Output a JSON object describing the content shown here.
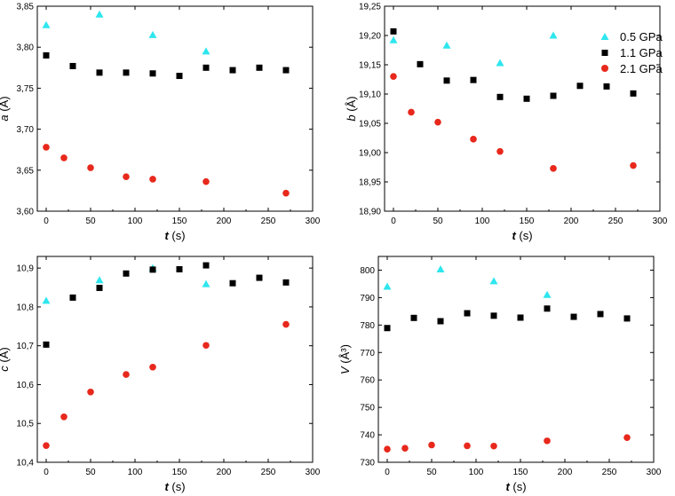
{
  "legend": [
    {
      "key": "s05",
      "label": "0.5 GPa"
    },
    {
      "key": "s11",
      "label": "1.1 GPa"
    },
    {
      "key": "s21",
      "label": "2.1 GPa"
    }
  ],
  "colors": {
    "s05": "#2ee6ee",
    "s11": "#000000",
    "s21": "#e8281c"
  },
  "chart_data": [
    {
      "type": "scatter",
      "xlabel_var": "t",
      "xlabel_unit": " (s)",
      "ylabel_var": "a",
      "ylabel_unit": " (Å)",
      "xlim": [
        -10,
        300
      ],
      "ylim": [
        3.6,
        3.85
      ],
      "xticks": [
        0,
        50,
        100,
        150,
        200,
        250,
        300
      ],
      "yticks": [
        3.6,
        3.65,
        3.7,
        3.75,
        3.8,
        3.85
      ],
      "ytick_labels": [
        "3,60",
        "3,65",
        "3,70",
        "3,75",
        "3,80",
        "3,85"
      ],
      "series": [
        {
          "key": "s05",
          "name": "0.5 GPa",
          "marker": "triangle",
          "x": [
            0,
            60,
            120,
            180
          ],
          "y": [
            3.827,
            3.84,
            3.815,
            3.795
          ]
        },
        {
          "key": "s11",
          "name": "1.1 GPa",
          "marker": "square",
          "x": [
            0,
            30,
            60,
            90,
            120,
            150,
            180,
            210,
            240,
            270
          ],
          "y": [
            3.79,
            3.777,
            3.769,
            3.769,
            3.768,
            3.765,
            3.775,
            3.772,
            3.775,
            3.772
          ]
        },
        {
          "key": "s21",
          "name": "2.1 GPa",
          "marker": "circle",
          "x": [
            0,
            20,
            50,
            90,
            120,
            180,
            270
          ],
          "y": [
            3.678,
            3.665,
            3.653,
            3.642,
            3.639,
            3.636,
            3.622
          ]
        }
      ]
    },
    {
      "type": "scatter",
      "xlabel_var": "t",
      "xlabel_unit": " (s)",
      "ylabel_var": "b",
      "ylabel_unit": " (Å)",
      "xlim": [
        -10,
        300
      ],
      "ylim": [
        18.9,
        19.25
      ],
      "xticks": [
        0,
        50,
        100,
        150,
        200,
        250,
        300
      ],
      "yticks": [
        18.9,
        18.95,
        19.0,
        19.05,
        19.1,
        19.15,
        19.2,
        19.25
      ],
      "ytick_labels": [
        "18,90",
        "18,95",
        "19,00",
        "19,05",
        "19,10",
        "19,15",
        "19,20",
        "19,25"
      ],
      "series": [
        {
          "key": "s05",
          "name": "0.5 GPa",
          "marker": "triangle",
          "x": [
            0,
            60,
            120,
            180
          ],
          "y": [
            19.192,
            19.183,
            19.153,
            19.2
          ]
        },
        {
          "key": "s11",
          "name": "1.1 GPa",
          "marker": "square",
          "x": [
            0,
            30,
            60,
            90,
            120,
            150,
            180,
            210,
            240,
            270
          ],
          "y": [
            19.207,
            19.151,
            19.123,
            19.124,
            19.095,
            19.092,
            19.097,
            19.114,
            19.113,
            19.101
          ]
        },
        {
          "key": "s21",
          "name": "2.1 GPa",
          "marker": "circle",
          "x": [
            0,
            20,
            50,
            90,
            120,
            180,
            270
          ],
          "y": [
            19.13,
            19.069,
            19.052,
            19.023,
            19.002,
            18.973,
            18.978
          ]
        }
      ]
    },
    {
      "type": "scatter",
      "xlabel_var": "t",
      "xlabel_unit": " (s)",
      "ylabel_var": "c",
      "ylabel_unit": " (Å)",
      "xlim": [
        -10,
        300
      ],
      "ylim": [
        10.4,
        10.93
      ],
      "xticks": [
        0,
        50,
        100,
        150,
        200,
        250,
        300
      ],
      "yticks": [
        10.4,
        10.5,
        10.6,
        10.7,
        10.8,
        10.9
      ],
      "ytick_labels": [
        "10,4",
        "10,5",
        "10,6",
        "10,7",
        "10,8",
        "10,9"
      ],
      "series": [
        {
          "key": "s05",
          "name": "0.5 GPa",
          "marker": "triangle",
          "x": [
            0,
            60,
            120,
            180
          ],
          "y": [
            10.816,
            10.869,
            10.9,
            10.859
          ]
        },
        {
          "key": "s11",
          "name": "1.1 GPa",
          "marker": "square",
          "x": [
            0,
            30,
            60,
            90,
            120,
            150,
            180,
            210,
            240,
            270
          ],
          "y": [
            10.703,
            10.824,
            10.849,
            10.886,
            10.896,
            10.897,
            10.907,
            10.861,
            10.875,
            10.863
          ]
        },
        {
          "key": "s21",
          "name": "2.1 GPa",
          "marker": "circle",
          "x": [
            0,
            20,
            50,
            90,
            120,
            180,
            270
          ],
          "y": [
            10.443,
            10.517,
            10.581,
            10.626,
            10.645,
            10.701,
            10.755
          ]
        }
      ]
    },
    {
      "type": "scatter",
      "xlabel_var": "t",
      "xlabel_unit": " (s)",
      "ylabel_var": "V",
      "ylabel_unit": " (Å³)",
      "xlim": [
        -10,
        300
      ],
      "ylim": [
        730,
        805
      ],
      "xticks": [
        0,
        50,
        100,
        150,
        200,
        250,
        300
      ],
      "yticks": [
        730,
        740,
        750,
        760,
        770,
        780,
        790,
        800
      ],
      "ytick_labels": [
        "730",
        "740",
        "750",
        "760",
        "770",
        "780",
        "790",
        "800"
      ],
      "series": [
        {
          "key": "s05",
          "name": "0.5 GPa",
          "marker": "triangle",
          "x": [
            0,
            60,
            120,
            180
          ],
          "y": [
            794.0,
            800.3,
            796.0,
            791.0
          ]
        },
        {
          "key": "s11",
          "name": "1.1 GPa",
          "marker": "square",
          "x": [
            0,
            30,
            60,
            90,
            120,
            150,
            180,
            210,
            240,
            270
          ],
          "y": [
            778.9,
            782.6,
            781.4,
            784.3,
            783.4,
            782.7,
            786.0,
            783.0,
            784.0,
            782.4
          ]
        },
        {
          "key": "s21",
          "name": "2.1 GPa",
          "marker": "circle",
          "x": [
            0,
            20,
            50,
            90,
            120,
            180,
            270
          ],
          "y": [
            734.8,
            735.1,
            736.3,
            736.0,
            735.9,
            737.8,
            739.0
          ]
        }
      ]
    }
  ]
}
